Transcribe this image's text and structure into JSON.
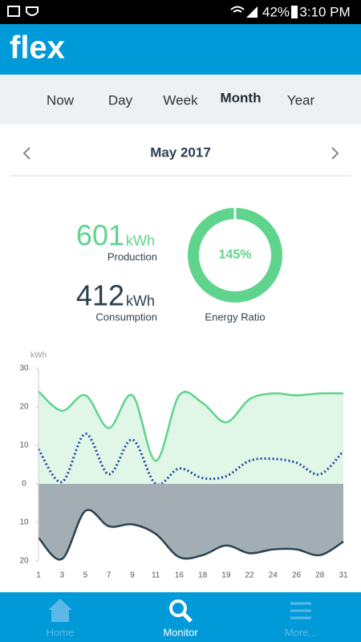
{
  "status_bar": {
    "battery": "42%",
    "time": "3:10 PM"
  },
  "header": {
    "logo": "flex"
  },
  "tabs": {
    "items": [
      "Now",
      "Day",
      "Week",
      "Month",
      "Year"
    ],
    "active": "Month"
  },
  "period": {
    "label": "May 2017"
  },
  "stats": {
    "production": {
      "value": "601",
      "unit": "kWh",
      "label": "Production"
    },
    "consumption": {
      "value": "412",
      "unit": "kWh",
      "label": "Consumption"
    },
    "ratio": {
      "value": 145,
      "label": "145%",
      "caption": "Energy Ratio",
      "color": "#5fd48c"
    }
  },
  "chart_data": {
    "type": "line",
    "y_label": "kWh",
    "categories": [
      "1",
      "3",
      "5",
      "7",
      "9",
      "11",
      "16",
      "18",
      "19",
      "22",
      "24",
      "26",
      "28",
      "31"
    ],
    "ylim": [
      -20,
      30
    ],
    "yticks": [
      30,
      20,
      10,
      0,
      {
        "value": -10,
        "label": "10"
      },
      {
        "value": -20,
        "label": "20"
      }
    ],
    "grid": false,
    "series": [
      {
        "color": "#5fd48c",
        "fill": "#e0f6e7",
        "style": "solid",
        "values": [
          24,
          19,
          23,
          14.5,
          23,
          6,
          23,
          21,
          16,
          22,
          23.5,
          23,
          23.5,
          23.5
        ]
      },
      {
        "color": "#1f4aa0",
        "style": "dotted",
        "values": [
          9,
          0.5,
          13,
          2.5,
          11.5,
          0,
          4,
          1.5,
          2,
          6,
          6.5,
          5.5,
          2.5,
          8.5
        ]
      },
      {
        "color": "#2a4252",
        "fill": "#a3adb4",
        "style": "solid",
        "values": [
          -14,
          -19.5,
          -7,
          -11,
          -10.5,
          -13,
          -19,
          -18.5,
          -16,
          -18,
          -17,
          -17,
          -18.5,
          -15
        ]
      }
    ]
  },
  "bottom_nav": {
    "items": [
      "Home",
      "Monitor",
      "More..."
    ],
    "active": "Monitor"
  }
}
